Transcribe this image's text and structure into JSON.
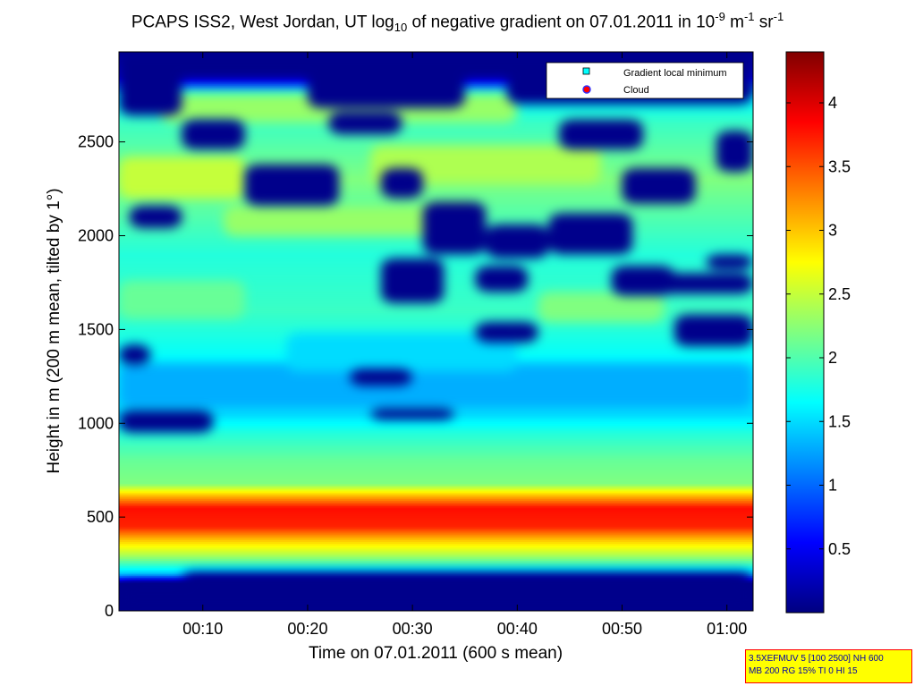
{
  "chart_data": {
    "type": "heatmap",
    "title_parts": {
      "prefix": "PCAPS ISS2, West Jordan, UT log",
      "sub": "10",
      "middle": " of negative gradient on 07.01.2011 in 10",
      "sup1": "-9",
      "unit1": " m",
      "sup2": "-1",
      "unit2": " sr",
      "sup3": "-1"
    },
    "xlabel": "Time on 07.01.2011 (600 s mean)",
    "ylabel": "Height in m (200 m mean, tilted by 1°)",
    "x_ticks": [
      "00:10",
      "00:20",
      "00:30",
      "00:40",
      "00:50",
      "01:00"
    ],
    "x_tick_minutes": [
      10,
      20,
      30,
      40,
      50,
      60
    ],
    "xlim_minutes": [
      2,
      62.5
    ],
    "y_ticks": [
      0,
      500,
      1000,
      1500,
      2000,
      2500
    ],
    "ylim": [
      0,
      2980
    ],
    "colorbar": {
      "colormap": "jet",
      "range": [
        0,
        4.4
      ],
      "ticks": [
        0.5,
        1,
        1.5,
        2,
        2.5,
        3,
        3.5,
        4
      ],
      "tick_labels": [
        "0.5",
        "1",
        "1.5",
        "2",
        "2.5",
        "3",
        "3.5",
        "4"
      ]
    },
    "profile": [
      {
        "height": 0,
        "value": 0.05
      },
      {
        "height": 150,
        "value": 0.05
      },
      {
        "height": 200,
        "value": 1.4
      },
      {
        "height": 300,
        "value": 2.4
      },
      {
        "height": 380,
        "value": 3.0
      },
      {
        "height": 450,
        "value": 3.7
      },
      {
        "height": 550,
        "value": 3.8
      },
      {
        "height": 620,
        "value": 3.0
      },
      {
        "height": 680,
        "value": 2.2
      },
      {
        "height": 800,
        "value": 2.1
      },
      {
        "height": 950,
        "value": 1.8
      },
      {
        "height": 1050,
        "value": 1.5
      },
      {
        "height": 1300,
        "value": 1.6
      },
      {
        "height": 1600,
        "value": 1.9
      },
      {
        "height": 1900,
        "value": 1.8
      },
      {
        "height": 2300,
        "value": 2.2
      },
      {
        "height": 2600,
        "value": 1.9
      },
      {
        "height": 2750,
        "value": 1.6
      },
      {
        "height": 2850,
        "value": 0.4
      },
      {
        "height": 2980,
        "value": 0.05
      }
    ],
    "low_regions": [
      {
        "t0": 2,
        "t1": 62.5,
        "h0": 2840,
        "h1": 2980
      },
      {
        "t0": 4,
        "t1": 12,
        "h0": 2860,
        "h1": 2980
      },
      {
        "t0": 20,
        "t1": 35,
        "h0": 2680,
        "h1": 2900
      },
      {
        "t0": 39,
        "t1": 62.5,
        "h0": 2700,
        "h1": 2860
      },
      {
        "t0": 2,
        "t1": 8,
        "h0": 2640,
        "h1": 2980
      },
      {
        "t0": 8,
        "t1": 14,
        "h0": 2460,
        "h1": 2620
      },
      {
        "t0": 22,
        "t1": 29,
        "h0": 2540,
        "h1": 2660
      },
      {
        "t0": 44,
        "t1": 52,
        "h0": 2460,
        "h1": 2620
      },
      {
        "t0": 14,
        "t1": 23,
        "h0": 2160,
        "h1": 2380
      },
      {
        "t0": 27,
        "t1": 31,
        "h0": 2200,
        "h1": 2360
      },
      {
        "t0": 50,
        "t1": 57,
        "h0": 2170,
        "h1": 2360
      },
      {
        "t0": 59,
        "t1": 62.5,
        "h0": 2340,
        "h1": 2560
      },
      {
        "t0": 3,
        "t1": 8,
        "h0": 2040,
        "h1": 2160
      },
      {
        "t0": 31,
        "t1": 37,
        "h0": 1900,
        "h1": 2180
      },
      {
        "t0": 37,
        "t1": 43,
        "h0": 1880,
        "h1": 2060
      },
      {
        "t0": 43,
        "t1": 51,
        "h0": 1900,
        "h1": 2120
      },
      {
        "t0": 27,
        "t1": 33,
        "h0": 1640,
        "h1": 1880
      },
      {
        "t0": 36,
        "t1": 41,
        "h0": 1700,
        "h1": 1840
      },
      {
        "t0": 49,
        "t1": 55,
        "h0": 1680,
        "h1": 1840
      },
      {
        "t0": 53,
        "t1": 62.5,
        "h0": 1690,
        "h1": 1800
      },
      {
        "t0": 58,
        "t1": 62.5,
        "h0": 1820,
        "h1": 1900
      },
      {
        "t0": 36,
        "t1": 42,
        "h0": 1430,
        "h1": 1540
      },
      {
        "t0": 55,
        "t1": 62.5,
        "h0": 1410,
        "h1": 1580
      },
      {
        "t0": 2,
        "t1": 5,
        "h0": 1310,
        "h1": 1420
      },
      {
        "t0": 24,
        "t1": 30,
        "h0": 1200,
        "h1": 1290
      },
      {
        "t0": 2,
        "t1": 11,
        "h0": 950,
        "h1": 1070
      },
      {
        "t0": 26,
        "t1": 34,
        "h0": 1020,
        "h1": 1080
      },
      {
        "t0": 2,
        "t1": 62.5,
        "h0": 0,
        "h1": 150
      },
      {
        "t0": 8,
        "t1": 62.5,
        "h0": 150,
        "h1": 210
      }
    ],
    "mid_regions": [
      {
        "t0": 2,
        "t1": 62.5,
        "h0": 1080,
        "h1": 1320,
        "value": 1.3
      },
      {
        "t0": 18,
        "t1": 40,
        "h0": 1280,
        "h1": 1480,
        "value": 1.5
      },
      {
        "t0": 6,
        "t1": 40,
        "h0": 2600,
        "h1": 2760,
        "value": 2.3
      },
      {
        "t0": 2,
        "t1": 14,
        "h0": 2200,
        "h1": 2420,
        "value": 2.5
      },
      {
        "t0": 26,
        "t1": 48,
        "h0": 2280,
        "h1": 2480,
        "value": 2.4
      },
      {
        "t0": 12,
        "t1": 36,
        "h0": 2000,
        "h1": 2160,
        "value": 2.3
      },
      {
        "t0": 2,
        "t1": 14,
        "h0": 1560,
        "h1": 1760,
        "value": 2.1
      },
      {
        "t0": 42,
        "t1": 54,
        "h0": 1540,
        "h1": 1700,
        "value": 2.2
      }
    ],
    "legend": {
      "position": "top-right",
      "entries": [
        {
          "label": "Gradient local minimum",
          "marker": "square",
          "color": "#00ffff"
        },
        {
          "label": "Cloud",
          "marker": "circle",
          "color": "#ff0000"
        }
      ]
    }
  },
  "info_box": {
    "line1": "3.5XEFMUV 5 [100 2500] NH 600",
    "line2": "MB 200 RG 15% TI 0 HI 15"
  }
}
